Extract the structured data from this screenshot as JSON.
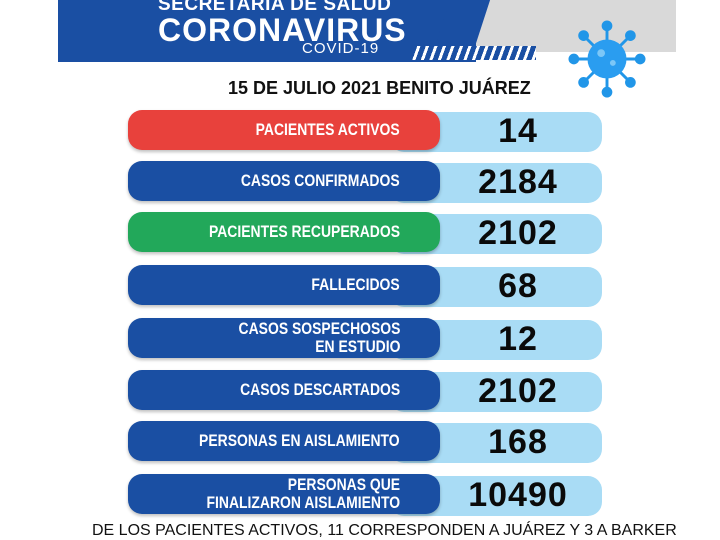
{
  "header": {
    "line1": "SECRETARÍA DE SALUD",
    "line2": "CORONAVIRUS",
    "line3": "COVID-19"
  },
  "date_line": "15 DE JULIO 2021 BENITO JUÁREZ",
  "rows": [
    {
      "label": "PACIENTES ACTIVOS",
      "value": "14",
      "color": "#e8413c"
    },
    {
      "label": "CASOS CONFIRMADOS",
      "value": "2184",
      "color": "#1a4fa3"
    },
    {
      "label": "PACIENTES RECUPERADOS",
      "value": "2102",
      "color": "#22a85a"
    },
    {
      "label": "FALLECIDOS",
      "value": "68",
      "color": "#1a4fa3"
    },
    {
      "label_line1": "CASOS SOSPECHOSOS",
      "label_line2": "EN ESTUDIO",
      "value": "12",
      "color": "#1a4fa3"
    },
    {
      "label": "CASOS DESCARTADOS",
      "value": "2102",
      "color": "#1a4fa3"
    },
    {
      "label": "PERSONAS EN AISLAMIENTO",
      "value": "168",
      "color": "#1a4fa3"
    },
    {
      "label_line1": "PERSONAS QUE",
      "label_line2": "FINALIZARON AISLAMIENTO",
      "value": "10490",
      "color": "#1a4fa3"
    }
  ],
  "footer_note": "DE LOS PACIENTES ACTIVOS, 11 CORRESPONDEN A JUÁREZ Y 3 A BARKER",
  "icons": {
    "virus": "coronavirus-icon"
  }
}
